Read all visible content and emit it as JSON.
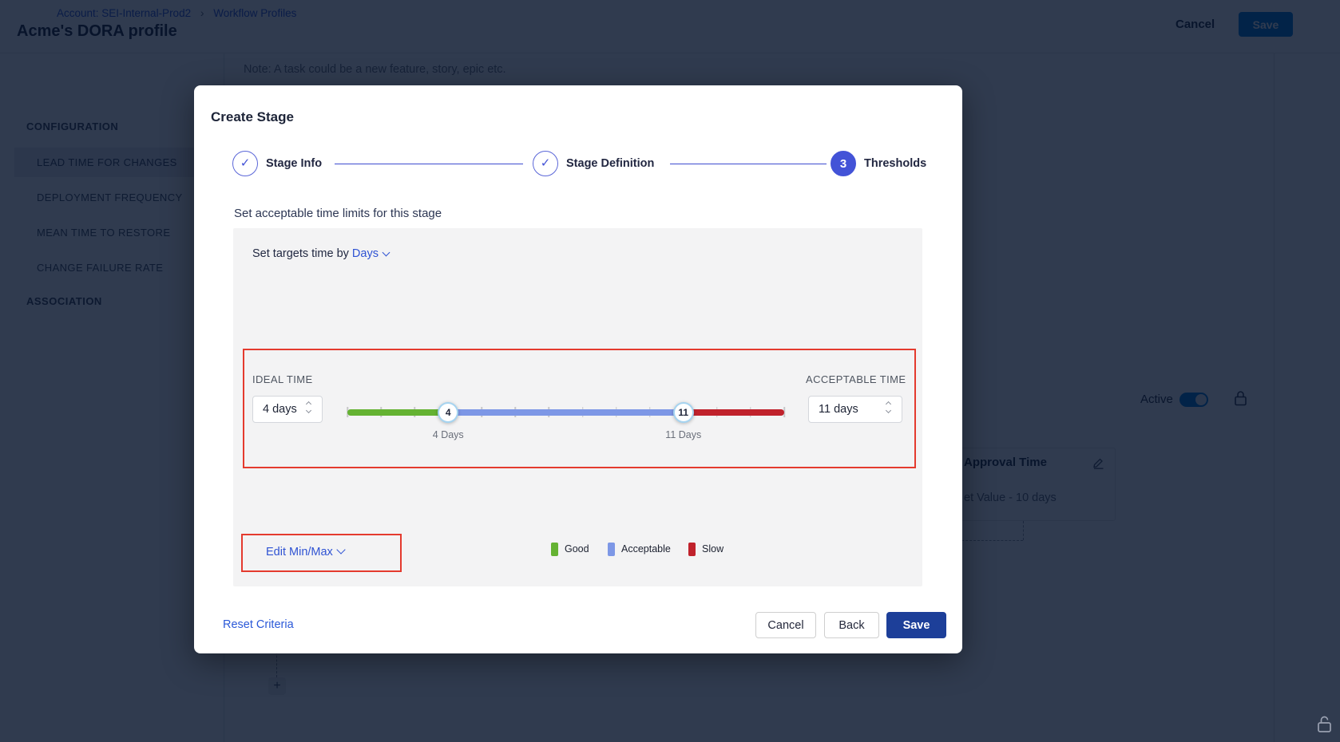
{
  "icons": {
    "check": "✓",
    "plus": "+",
    "breadcrumb_separator": "›"
  },
  "colors": {
    "annotation_red": "#e43a2e",
    "stepper_blue": "#4353d7",
    "link_blue": "#2f53d3",
    "header_save_blue": "#0278d5",
    "modal_save_blue": "#1d3f99",
    "toggle_on_blue": "#0278d5"
  },
  "background": {
    "breadcrumb": {
      "account_link": "Account: SEI-Internal-Prod2",
      "section_link": "Workflow Profiles"
    },
    "page_title": "Acme's DORA profile",
    "header_actions": {
      "cancel_label": "Cancel",
      "save_label": "Save"
    },
    "sidebar": {
      "configuration_header": "CONFIGURATION",
      "items": [
        {
          "label": "LEAD TIME FOR CHANGES"
        },
        {
          "label": "DEPLOYMENT FREQUENCY"
        },
        {
          "label": "MEAN TIME TO RESTORE"
        },
        {
          "label": "CHANGE FAILURE RATE"
        }
      ],
      "association_header": "ASSOCIATION"
    },
    "content": {
      "note": "Note: A task could be a new feature, story, epic etc.",
      "active_label": "Active",
      "stage_card": {
        "title": "Approval Time",
        "value": "et Value - 10 days"
      }
    }
  },
  "modal": {
    "title": "Create Stage",
    "steps": [
      {
        "label": "Stage Info"
      },
      {
        "label": "Stage Definition"
      },
      {
        "label": "Thresholds",
        "number": "3"
      }
    ],
    "subtitle": "Set acceptable time limits for this stage",
    "target_time": {
      "prefix": "Set targets time by",
      "unit": "Days"
    },
    "thresholds": {
      "ideal": {
        "label": "IDEAL TIME",
        "value": "4 days"
      },
      "acceptable": {
        "label": "ACCEPTABLE TIME",
        "value": "11 days"
      },
      "slider": {
        "min_days": 1,
        "max_days": 14,
        "ideal_days": 4,
        "acceptable_days": 11,
        "ideal_marker": "4",
        "acceptable_marker": "11",
        "ideal_axis_label": "4 Days",
        "acceptable_axis_label": "11 Days"
      }
    },
    "edit_minmax_label": "Edit Min/Max",
    "legend": [
      {
        "label": "Good",
        "color": "#64b232"
      },
      {
        "label": "Acceptable",
        "color": "#7d97e6"
      },
      {
        "label": "Slow",
        "color": "#c0222c"
      }
    ],
    "footer": {
      "reset_label": "Reset Criteria",
      "cancel_label": "Cancel",
      "back_label": "Back",
      "save_label": "Save"
    }
  }
}
